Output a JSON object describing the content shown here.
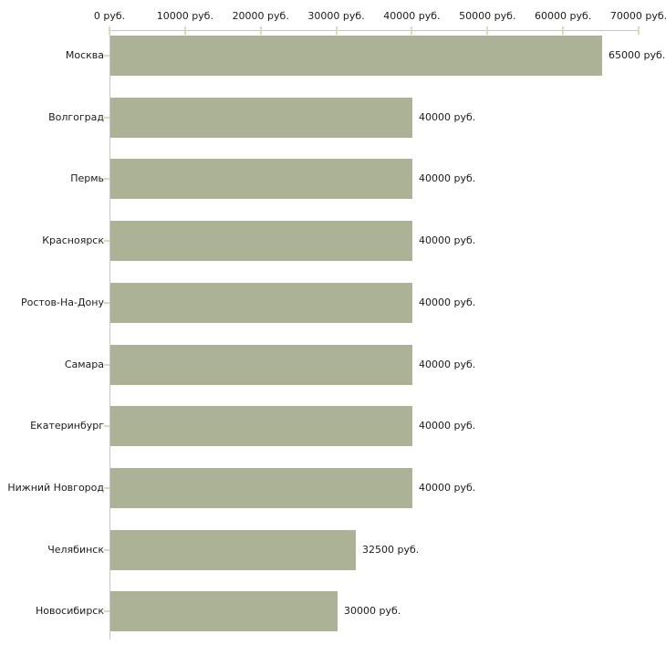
{
  "chart_data": {
    "type": "bar",
    "orientation": "horizontal",
    "title": "",
    "xlabel": "",
    "ylabel": "",
    "unit": "руб.",
    "grid": false,
    "legend": false,
    "xlim": [
      0,
      70000
    ],
    "xtick_values": [
      0,
      10000,
      20000,
      30000,
      40000,
      50000,
      60000,
      70000
    ],
    "xtick_labels": [
      "0 руб.",
      "10000 руб.",
      "20000 руб.",
      "30000 руб.",
      "40000 руб.",
      "50000 руб.",
      "60000 руб.",
      "70000 руб."
    ],
    "categories": [
      "Москва",
      "Волгоград",
      "Пермь",
      "Красноярск",
      "Ростов-На-Дону",
      "Самара",
      "Екатеринбург",
      "Нижний Новгород",
      "Челябинск",
      "Новосибирск"
    ],
    "values": [
      65000,
      40000,
      40000,
      40000,
      40000,
      40000,
      40000,
      40000,
      32500,
      30000
    ],
    "value_labels": [
      "65000 руб.",
      "40000 руб.",
      "40000 руб.",
      "40000 руб.",
      "40000 руб.",
      "40000 руб.",
      "40000 руб.",
      "40000 руб.",
      "32500 руб.",
      "30000 руб."
    ],
    "colors": {
      "bar": "#acb295",
      "axis_line": "#c6c6c6",
      "tick_mark": "#dcdcb4",
      "text": "#1b1b1b",
      "background": "#ffffff"
    }
  }
}
